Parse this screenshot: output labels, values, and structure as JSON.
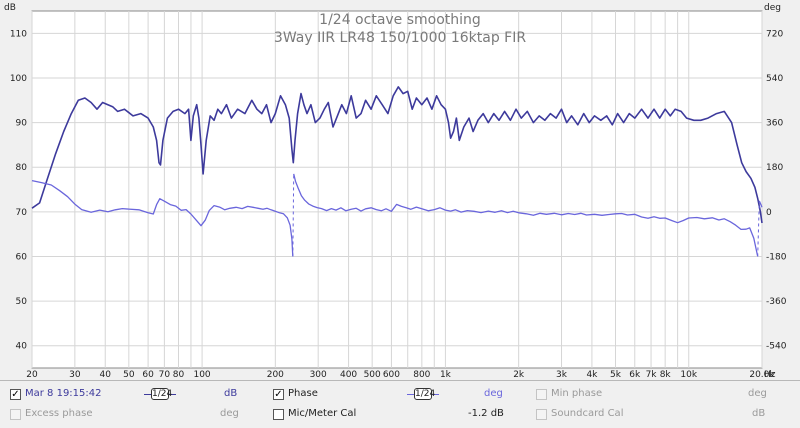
{
  "chart_data": {
    "type": "line",
    "title": "1/24 octave smoothing",
    "subtitle": "3Way IIR LR48 150/1000 16ktap FIR",
    "left_unit": "dB",
    "right_unit": "deg",
    "x_unit": "Hz",
    "x_scale": "log",
    "xlim": [
      20,
      20000
    ],
    "ylim_left": [
      35,
      115
    ],
    "ylim_right": [
      -630,
      810
    ],
    "grid": true,
    "x_ticks": [
      20,
      30,
      40,
      50,
      60,
      70,
      80,
      100,
      200,
      300,
      400,
      500,
      600,
      800,
      1000,
      2000,
      3000,
      4000,
      5000,
      6000,
      7000,
      8000,
      10000,
      20000
    ],
    "x_tick_labels": [
      "20",
      "30",
      "40",
      "50",
      "60",
      "70",
      "80",
      "100",
      "200",
      "300",
      "400",
      "500",
      "600",
      "800",
      "1k",
      "2k",
      "3k",
      "4k",
      "5k",
      "6k",
      "7k",
      "8k",
      "10k",
      "20.0k"
    ],
    "y_ticks_left": [
      40,
      50,
      60,
      70,
      80,
      90,
      100,
      110
    ],
    "y_tick_labels_left": [
      "40",
      "50",
      "60",
      "70",
      "80",
      "90",
      "100",
      "110"
    ],
    "y_ticks_right": [
      -540,
      -360,
      -180,
      0,
      180,
      360,
      540,
      720
    ],
    "y_tick_labels_right": [
      "-540",
      "-360",
      "-180",
      "0",
      "180",
      "360",
      "540",
      "720"
    ],
    "series": [
      {
        "name": "Mar 8 19:15:42",
        "axis": "left",
        "unit": "dB",
        "color": "#3d3a9c",
        "points": [
          [
            20,
            70.8
          ],
          [
            21.5,
            72
          ],
          [
            23,
            77
          ],
          [
            25,
            83
          ],
          [
            27,
            88
          ],
          [
            29,
            92
          ],
          [
            31,
            95
          ],
          [
            33,
            95.5
          ],
          [
            35,
            94.5
          ],
          [
            37,
            93
          ],
          [
            39,
            94.5
          ],
          [
            41,
            94
          ],
          [
            43,
            93.5
          ],
          [
            45,
            92.5
          ],
          [
            48,
            93
          ],
          [
            52,
            91.5
          ],
          [
            56,
            92
          ],
          [
            60,
            91
          ],
          [
            63,
            89
          ],
          [
            65,
            86
          ],
          [
            66.5,
            81
          ],
          [
            67.5,
            80.5
          ],
          [
            69,
            86
          ],
          [
            72,
            91
          ],
          [
            76,
            92.5
          ],
          [
            80,
            93
          ],
          [
            85,
            92
          ],
          [
            88,
            93
          ],
          [
            90,
            86
          ],
          [
            92,
            91.5
          ],
          [
            95,
            94
          ],
          [
            97,
            91
          ],
          [
            99,
            85
          ],
          [
            101,
            78.5
          ],
          [
            104,
            86
          ],
          [
            108,
            91.5
          ],
          [
            112,
            90.5
          ],
          [
            116,
            93
          ],
          [
            120,
            92
          ],
          [
            126,
            94
          ],
          [
            132,
            91
          ],
          [
            140,
            93
          ],
          [
            150,
            92
          ],
          [
            160,
            95
          ],
          [
            168,
            93
          ],
          [
            176,
            92
          ],
          [
            184,
            94
          ],
          [
            192,
            90
          ],
          [
            200,
            92
          ],
          [
            210,
            96
          ],
          [
            220,
            94
          ],
          [
            228,
            91
          ],
          [
            234,
            84
          ],
          [
            237,
            81
          ],
          [
            241,
            86
          ],
          [
            247,
            92
          ],
          [
            255,
            96.5
          ],
          [
            262,
            94
          ],
          [
            270,
            92
          ],
          [
            280,
            94
          ],
          [
            292,
            90
          ],
          [
            305,
            91
          ],
          [
            318,
            93
          ],
          [
            330,
            94.5
          ],
          [
            345,
            89
          ],
          [
            360,
            91.5
          ],
          [
            375,
            94
          ],
          [
            392,
            92
          ],
          [
            410,
            96
          ],
          [
            430,
            91
          ],
          [
            450,
            92
          ],
          [
            470,
            95
          ],
          [
            495,
            93
          ],
          [
            520,
            96
          ],
          [
            550,
            94
          ],
          [
            580,
            92
          ],
          [
            610,
            96
          ],
          [
            640,
            98
          ],
          [
            670,
            96.5
          ],
          [
            700,
            97
          ],
          [
            730,
            93
          ],
          [
            760,
            95.5
          ],
          [
            800,
            94
          ],
          [
            840,
            95.5
          ],
          [
            880,
            93
          ],
          [
            920,
            96
          ],
          [
            960,
            94
          ],
          [
            1000,
            93
          ],
          [
            1030,
            90
          ],
          [
            1050,
            86.5
          ],
          [
            1080,
            88
          ],
          [
            1110,
            91
          ],
          [
            1140,
            86
          ],
          [
            1190,
            89
          ],
          [
            1250,
            91
          ],
          [
            1300,
            88
          ],
          [
            1360,
            90.5
          ],
          [
            1430,
            92
          ],
          [
            1500,
            90
          ],
          [
            1580,
            92
          ],
          [
            1660,
            90.5
          ],
          [
            1750,
            92.5
          ],
          [
            1850,
            90.5
          ],
          [
            1950,
            93
          ],
          [
            2050,
            91
          ],
          [
            2170,
            92.5
          ],
          [
            2300,
            90
          ],
          [
            2430,
            91.5
          ],
          [
            2560,
            90.5
          ],
          [
            2700,
            92
          ],
          [
            2850,
            91
          ],
          [
            3000,
            93
          ],
          [
            3150,
            90
          ],
          [
            3300,
            91.5
          ],
          [
            3500,
            89.5
          ],
          [
            3700,
            92
          ],
          [
            3900,
            90
          ],
          [
            4100,
            91.5
          ],
          [
            4350,
            90.5
          ],
          [
            4600,
            91.5
          ],
          [
            4850,
            89.5
          ],
          [
            5100,
            92
          ],
          [
            5400,
            90
          ],
          [
            5700,
            92
          ],
          [
            6000,
            91
          ],
          [
            6400,
            93
          ],
          [
            6800,
            91
          ],
          [
            7200,
            93
          ],
          [
            7600,
            91
          ],
          [
            8000,
            93
          ],
          [
            8400,
            91.5
          ],
          [
            8800,
            93
          ],
          [
            9300,
            92.5
          ],
          [
            9800,
            91
          ],
          [
            10500,
            90.5
          ],
          [
            11200,
            90.5
          ],
          [
            12000,
            91
          ],
          [
            13000,
            92
          ],
          [
            14000,
            92.5
          ],
          [
            15000,
            90
          ],
          [
            15800,
            85
          ],
          [
            16500,
            81
          ],
          [
            17200,
            79
          ],
          [
            18000,
            77.5
          ],
          [
            18700,
            75.5
          ],
          [
            19200,
            73
          ],
          [
            19700,
            70
          ],
          [
            20000,
            67.5
          ]
        ]
      },
      {
        "name": "Phase",
        "axis": "right",
        "unit": "deg",
        "color": "#6a66dc",
        "points": [
          [
            20,
            126
          ],
          [
            22,
            117
          ],
          [
            24,
            108
          ],
          [
            26,
            85
          ],
          [
            28,
            61
          ],
          [
            30,
            31
          ],
          [
            32,
            9
          ],
          [
            35,
            -2
          ],
          [
            38,
            7
          ],
          [
            41,
            0
          ],
          [
            44,
            8
          ],
          [
            47,
            13
          ],
          [
            50,
            11
          ],
          [
            55,
            8
          ],
          [
            60,
            -4
          ],
          [
            63,
            -9
          ],
          [
            65,
            29
          ],
          [
            67,
            53
          ],
          [
            70,
            43
          ],
          [
            74,
            29
          ],
          [
            78,
            23
          ],
          [
            82,
            6
          ],
          [
            86,
            9
          ],
          [
            90,
            -9
          ],
          [
            95,
            -36
          ],
          [
            99,
            -56
          ],
          [
            103,
            -34
          ],
          [
            107,
            5
          ],
          [
            112,
            25
          ],
          [
            118,
            19
          ],
          [
            124,
            8
          ],
          [
            130,
            14
          ],
          [
            138,
            18
          ],
          [
            146,
            13
          ],
          [
            154,
            22
          ],
          [
            162,
            18
          ],
          [
            170,
            14
          ],
          [
            178,
            10
          ],
          [
            185,
            14
          ],
          [
            192,
            8
          ],
          [
            200,
            2
          ],
          [
            208,
            -4
          ],
          [
            216,
            -8
          ],
          [
            224,
            -24
          ],
          [
            230,
            -54
          ],
          [
            234,
            -110
          ],
          [
            236,
            -180
          ],
          [
            238,
            153
          ],
          [
            242,
            123
          ],
          [
            248,
            96
          ],
          [
            256,
            65
          ],
          [
            264,
            47
          ],
          [
            274,
            32
          ],
          [
            285,
            23
          ],
          [
            297,
            17
          ],
          [
            310,
            13
          ],
          [
            325,
            5
          ],
          [
            340,
            13
          ],
          [
            355,
            7
          ],
          [
            372,
            16
          ],
          [
            390,
            4
          ],
          [
            410,
            10
          ],
          [
            430,
            14
          ],
          [
            450,
            3
          ],
          [
            470,
            12
          ],
          [
            495,
            16
          ],
          [
            520,
            9
          ],
          [
            545,
            4
          ],
          [
            570,
            12
          ],
          [
            600,
            2
          ],
          [
            630,
            30
          ],
          [
            660,
            22
          ],
          [
            690,
            16
          ],
          [
            720,
            10
          ],
          [
            760,
            19
          ],
          [
            800,
            12
          ],
          [
            850,
            4
          ],
          [
            900,
            9
          ],
          [
            950,
            16
          ],
          [
            1000,
            7
          ],
          [
            1050,
            3
          ],
          [
            1100,
            8
          ],
          [
            1160,
            -1
          ],
          [
            1230,
            5
          ],
          [
            1310,
            2
          ],
          [
            1400,
            -3
          ],
          [
            1500,
            3
          ],
          [
            1600,
            -2
          ],
          [
            1700,
            4
          ],
          [
            1800,
            -3
          ],
          [
            1900,
            2
          ],
          [
            2000,
            -4
          ],
          [
            2150,
            -8
          ],
          [
            2300,
            -14
          ],
          [
            2450,
            -6
          ],
          [
            2600,
            -10
          ],
          [
            2800,
            -6
          ],
          [
            3000,
            -12
          ],
          [
            3200,
            -7
          ],
          [
            3400,
            -11
          ],
          [
            3600,
            -6
          ],
          [
            3800,
            -13
          ],
          [
            4100,
            -10
          ],
          [
            4400,
            -14
          ],
          [
            4700,
            -11
          ],
          [
            5000,
            -8
          ],
          [
            5300,
            -7
          ],
          [
            5600,
            -13
          ],
          [
            6000,
            -10
          ],
          [
            6400,
            -21
          ],
          [
            6800,
            -26
          ],
          [
            7200,
            -20
          ],
          [
            7600,
            -26
          ],
          [
            8000,
            -25
          ],
          [
            8500,
            -35
          ],
          [
            9000,
            -44
          ],
          [
            9500,
            -35
          ],
          [
            10000,
            -25
          ],
          [
            10800,
            -23
          ],
          [
            11600,
            -28
          ],
          [
            12500,
            -24
          ],
          [
            13300,
            -33
          ],
          [
            14000,
            -28
          ],
          [
            14800,
            -40
          ],
          [
            15600,
            -54
          ],
          [
            16400,
            -71
          ],
          [
            17200,
            -70
          ],
          [
            17800,
            -65
          ],
          [
            18500,
            -107
          ],
          [
            19200,
            -180
          ],
          [
            19500,
            44
          ],
          [
            19800,
            29
          ],
          [
            20000,
            18
          ]
        ]
      }
    ]
  },
  "legend": {
    "row1": [
      {
        "label": "Mar 8 19:15:42",
        "checked": true,
        "enabled": true,
        "color": "#3d3a9c",
        "smoothing": "1/24",
        "unit": "dB"
      },
      {
        "label": "Phase",
        "checked": true,
        "enabled": true,
        "color": "#6a66dc",
        "smoothing": "1/24",
        "unit": "deg"
      },
      {
        "label": "Min phase",
        "checked": false,
        "enabled": false,
        "unit": "deg"
      }
    ],
    "row2": [
      {
        "label": "Excess phase",
        "checked": false,
        "enabled": false,
        "unit": "deg"
      },
      {
        "label": "Mic/Meter Cal",
        "checked": false,
        "enabled": true,
        "value": "-1.2 dB"
      },
      {
        "label": "Soundcard Cal",
        "checked": false,
        "enabled": false,
        "unit": "dB"
      }
    ]
  }
}
